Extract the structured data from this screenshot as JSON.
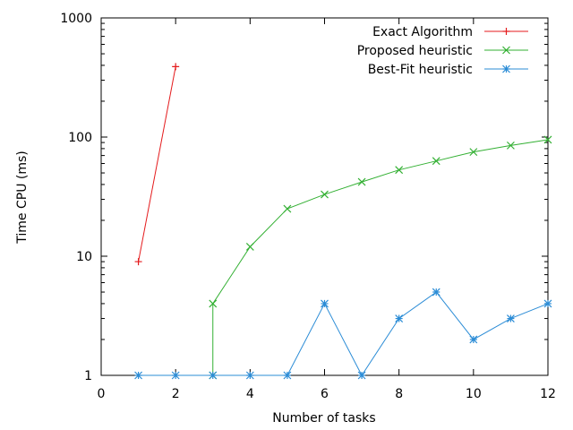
{
  "chart_data": {
    "type": "line",
    "xlabel": "Number of tasks",
    "ylabel": "Time CPU (ms)",
    "xlim": [
      0,
      12
    ],
    "ylim": [
      1,
      1000
    ],
    "yscale": "log",
    "grid": false,
    "legend_position": "top-right",
    "xticks": [
      0,
      2,
      4,
      6,
      8,
      10,
      12
    ],
    "xtick_labels": [
      "0",
      "2",
      "4",
      "6",
      "8",
      "10",
      "12"
    ],
    "yticks": [
      1,
      10,
      100,
      1000
    ],
    "ytick_labels": [
      "1",
      "10",
      "100",
      "1000"
    ],
    "series": [
      {
        "name": "Exact Algorithm",
        "color": "#e41a1c",
        "marker": "plus",
        "x": [
          1,
          2
        ],
        "y": [
          9,
          390
        ]
      },
      {
        "name": "Proposed heuristic",
        "color": "#33b033",
        "marker": "cross",
        "x": [
          3,
          3,
          4,
          5,
          6,
          7,
          8,
          9,
          10,
          11,
          12
        ],
        "y": [
          1,
          4,
          12,
          25,
          33,
          42,
          53,
          63,
          75,
          85,
          95
        ]
      },
      {
        "name": "Best-Fit heuristic",
        "color": "#2b8cd6",
        "marker": "star",
        "x": [
          1,
          2,
          3,
          4,
          5,
          6,
          7,
          8,
          9,
          10,
          11,
          12
        ],
        "y": [
          1,
          1,
          1,
          1,
          1,
          4,
          1,
          3,
          5,
          2,
          3,
          4
        ]
      }
    ]
  }
}
